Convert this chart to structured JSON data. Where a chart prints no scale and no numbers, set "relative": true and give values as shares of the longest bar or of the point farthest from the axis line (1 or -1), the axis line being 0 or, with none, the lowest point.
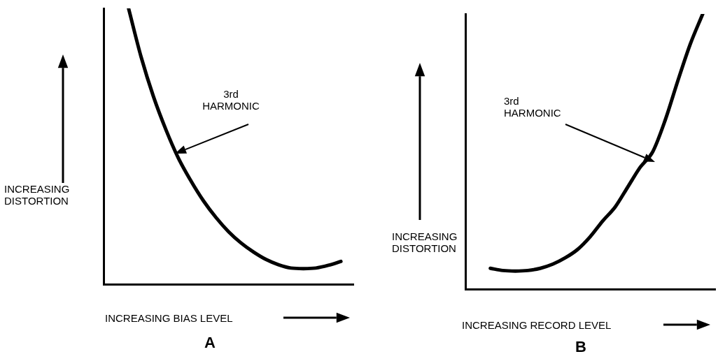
{
  "chart_data": [
    {
      "type": "line",
      "title": "A",
      "xlabel": "INCREASING BIAS LEVEL",
      "ylabel": "INCREASING DISTORTION",
      "annotations": [
        "3rd\nHARMONIC"
      ],
      "relative": true,
      "grid": false,
      "legend": false,
      "marker": "none",
      "line_style": "solid",
      "categories": [
        null,
        null,
        null,
        null,
        null,
        null,
        null,
        null,
        null,
        null,
        null,
        null,
        null,
        null,
        null,
        null,
        null,
        null,
        null,
        null,
        null
      ],
      "series": [
        {
          "color": "#000000",
          "values": [
            null,
            null,
            1.0,
            0.825,
            0.68,
            0.56,
            0.457,
            0.375,
            0.303,
            0.243,
            0.192,
            0.151,
            0.118,
            0.091,
            0.072,
            0.06,
            0.058,
            0.06,
            0.07,
            0.084,
            null
          ]
        }
      ]
    },
    {
      "type": "line",
      "title": "B",
      "xlabel": "INCREASING RECORD LEVEL",
      "ylabel": "INCREASING DISTORTION",
      "annotations": [
        "3rd\nHARMONIC"
      ],
      "relative": true,
      "grid": false,
      "legend": false,
      "marker": "none",
      "line_style": "solid",
      "categories": [
        null,
        null,
        null,
        null,
        null,
        null,
        null,
        null,
        null,
        null,
        null,
        null,
        null,
        null,
        null,
        null,
        null,
        null,
        null,
        null,
        null
      ],
      "series": [
        {
          "color": "#000000",
          "values": [
            null,
            null,
            0.077,
            0.069,
            0.067,
            0.069,
            0.077,
            0.092,
            0.115,
            0.146,
            0.192,
            0.249,
            0.3,
            0.372,
            0.444,
            0.5,
            0.615,
            0.756,
            0.89,
            1.0,
            null
          ]
        }
      ]
    }
  ]
}
